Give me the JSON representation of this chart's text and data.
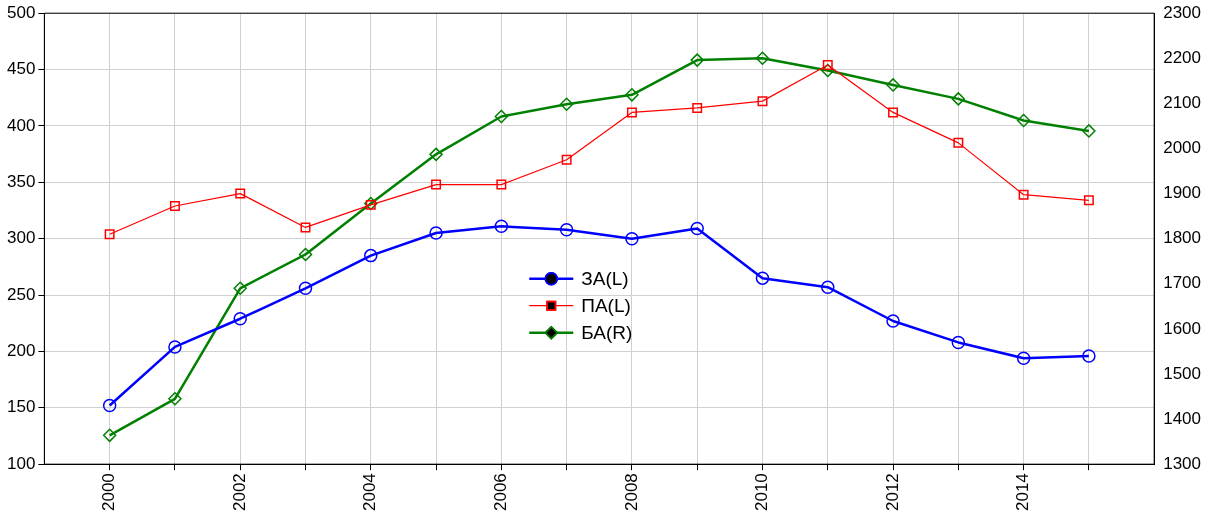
{
  "chart_data": {
    "type": "line",
    "x": [
      2000,
      2001,
      2002,
      2003,
      2004,
      2005,
      2006,
      2007,
      2008,
      2009,
      2010,
      2011,
      2012,
      2013,
      2014,
      2015
    ],
    "series": [
      {
        "name": "ЗА(L)",
        "color": "#0000ff",
        "marker": "circle",
        "values": [
          152,
          204,
          229,
          256,
          285,
          305,
          311,
          308,
          300,
          309,
          265,
          257,
          227,
          208,
          194,
          196
        ]
      },
      {
        "name": "ПА(L)",
        "color": "#ff0000",
        "marker": "square",
        "values": [
          304,
          329,
          340,
          310,
          330,
          348,
          348,
          370,
          412,
          416,
          422,
          454,
          412,
          385,
          339,
          334
        ]
      },
      {
        "name": "БА(R)",
        "color": "#008000",
        "marker": "diamond",
        "axis": "y2",
        "values": [
          1364,
          1445,
          1690,
          1765,
          1878,
          1987,
          2071,
          2098,
          2119,
          2196,
          2200,
          2173,
          2141,
          2110,
          2062,
          2039
        ]
      }
    ],
    "xlim": [
      1999,
      2016
    ],
    "xticks": [
      2000,
      {
        "value": 2001,
        "label": null
      },
      2002,
      {
        "value": 2003,
        "label": null
      },
      2004,
      {
        "value": 2005,
        "label": null
      },
      2006,
      {
        "value": 2007,
        "label": null
      },
      2008,
      {
        "value": 2009,
        "label": null
      },
      2010,
      {
        "value": 2011,
        "label": null
      },
      2012,
      {
        "value": 2013,
        "label": null
      },
      2014,
      {
        "value": 2015,
        "label": null
      }
    ],
    "ylim": [
      100,
      500
    ],
    "yticks": [
      100,
      150,
      200,
      250,
      300,
      350,
      400,
      450,
      500
    ],
    "y2lim": [
      1300,
      2300
    ],
    "y2ticks": [
      1300,
      1400,
      1500,
      1600,
      1700,
      1800,
      1900,
      2000,
      2100,
      2200,
      2300
    ],
    "grid": true,
    "legend": "center",
    "line_style": "solid"
  }
}
